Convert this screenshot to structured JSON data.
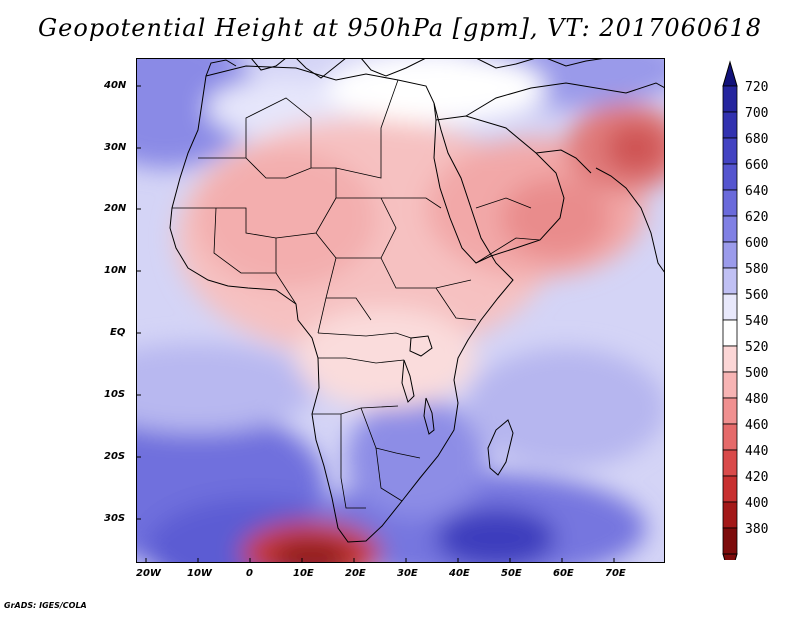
{
  "title": "Geopotential Height at 950hPa [gpm], VT: 2017060618",
  "credit": "GrADS: IGES/COLA",
  "map": {
    "lon_range": [
      -22,
      80
    ],
    "lat_range": [
      -37,
      45
    ],
    "lon_labels": [
      "20W",
      "10W",
      "0",
      "10E",
      "20E",
      "30E",
      "40E",
      "50E",
      "60E",
      "70E"
    ],
    "lat_labels": [
      "40N",
      "30N",
      "20N",
      "10N",
      "EQ",
      "10S",
      "20S",
      "30S"
    ],
    "land_outline": "Africa, Arabian Peninsula, southwest Asia and southern Europe coastlines with country borders",
    "icon": "map-icon"
  },
  "colorbar": {
    "labels": [
      "720",
      "700",
      "680",
      "660",
      "640",
      "620",
      "600",
      "580",
      "560",
      "540",
      "520",
      "500",
      "480",
      "460",
      "440",
      "420",
      "400",
      "380"
    ],
    "colors": [
      "#1a1a8c",
      "#25259e",
      "#3232b0",
      "#4343c2",
      "#5555cf",
      "#6a6adb",
      "#8080e4",
      "#9b9beb",
      "#c0c0f4",
      "#e8e8fb",
      "#ffffff",
      "#fcd6d6",
      "#f7b4b4",
      "#f09090",
      "#e56a6a",
      "#d94a4a",
      "#c83030",
      "#a31818",
      "#7d0c0c"
    ],
    "top_arrow_color": "#12127a",
    "bottom_arrow_color": "#7d0c0c"
  }
}
